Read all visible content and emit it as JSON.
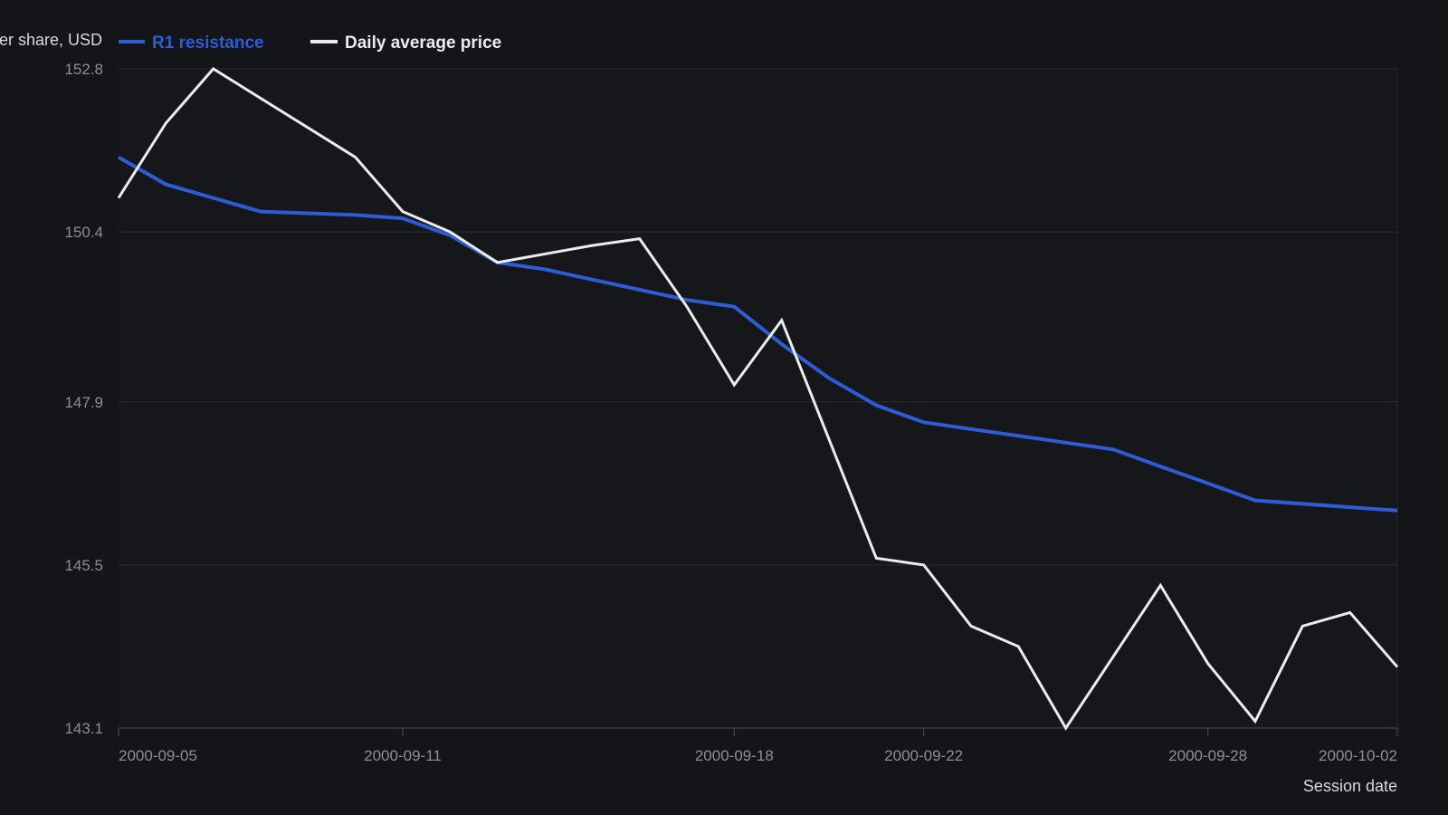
{
  "chart_data": {
    "type": "line",
    "title": "",
    "ylabel": "er share, USD",
    "xlabel": "Session date",
    "ylim": [
      143.1,
      152.8
    ],
    "x_range": [
      "2000-09-05",
      "2000-10-02"
    ],
    "y_ticks": [
      "152.8",
      "150.4",
      "147.9",
      "145.5",
      "143.1"
    ],
    "x_ticks": [
      "2000-09-05",
      "2000-09-11",
      "2000-09-18",
      "2000-09-22",
      "2000-09-28",
      "2000-10-02"
    ],
    "grid": true,
    "legend_position": "top-left",
    "series": [
      {
        "name": "R1 resistance",
        "color": "#2e5bd6",
        "points": [
          [
            "2000-09-05",
            151.5
          ],
          [
            "2000-09-06",
            151.1
          ],
          [
            "2000-09-08",
            150.7
          ],
          [
            "2000-09-10",
            150.65
          ],
          [
            "2000-09-11",
            150.6
          ],
          [
            "2000-09-12",
            150.35
          ],
          [
            "2000-09-13",
            149.95
          ],
          [
            "2000-09-14",
            149.85
          ],
          [
            "2000-09-15",
            149.7
          ],
          [
            "2000-09-16",
            149.55
          ],
          [
            "2000-09-17",
            149.4
          ],
          [
            "2000-09-18",
            149.3
          ],
          [
            "2000-09-19",
            148.75
          ],
          [
            "2000-09-20",
            148.25
          ],
          [
            "2000-09-21",
            147.85
          ],
          [
            "2000-09-22",
            147.6
          ],
          [
            "2000-09-23",
            147.5
          ],
          [
            "2000-09-25",
            147.3
          ],
          [
            "2000-09-26",
            147.2
          ],
          [
            "2000-09-27",
            146.95
          ],
          [
            "2000-09-28",
            146.7
          ],
          [
            "2000-09-29",
            146.45
          ],
          [
            "2000-10-02",
            146.3
          ]
        ]
      },
      {
        "name": "Daily average price",
        "color": "#ececec",
        "points": [
          [
            "2000-09-05",
            150.9
          ],
          [
            "2000-09-06",
            152.0
          ],
          [
            "2000-09-07",
            152.8
          ],
          [
            "2000-09-10",
            151.5
          ],
          [
            "2000-09-11",
            150.7
          ],
          [
            "2000-09-12",
            150.4
          ],
          [
            "2000-09-13",
            149.95
          ],
          [
            "2000-09-15",
            150.2
          ],
          [
            "2000-09-16",
            150.3
          ],
          [
            "2000-09-17",
            149.3
          ],
          [
            "2000-09-18",
            148.15
          ],
          [
            "2000-09-19",
            149.1
          ],
          [
            "2000-09-21",
            145.6
          ],
          [
            "2000-09-22",
            145.5
          ],
          [
            "2000-09-23",
            144.6
          ],
          [
            "2000-09-24",
            144.3
          ],
          [
            "2000-09-25",
            143.1
          ],
          [
            "2000-09-27",
            145.2
          ],
          [
            "2000-09-28",
            144.05
          ],
          [
            "2000-09-29",
            143.2
          ],
          [
            "2000-09-30",
            144.6
          ],
          [
            "2000-10-01",
            144.8
          ],
          [
            "2000-10-02",
            144.0
          ]
        ]
      }
    ]
  },
  "colors": {
    "background": "#141518",
    "plot_background": "#16171b",
    "grid": "#2a2c31",
    "axis": "#3a3c42",
    "tick_text": "#8c8f96"
  }
}
